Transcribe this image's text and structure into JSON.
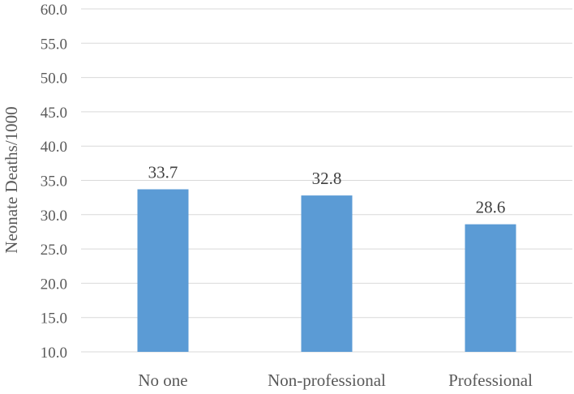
{
  "chart_data": {
    "type": "bar",
    "title": "",
    "xlabel": "",
    "ylabel": "Neonate Deaths/1000",
    "categories": [
      "No one",
      "Non-professional",
      "Professional"
    ],
    "values": [
      33.7,
      32.8,
      28.6
    ],
    "data_labels": [
      "33.7",
      "32.8",
      "28.6"
    ],
    "ylim": [
      10,
      60
    ],
    "yticks": [
      "10.0",
      "15.0",
      "20.0",
      "25.0",
      "30.0",
      "35.0",
      "40.0",
      "45.0",
      "50.0",
      "55.0",
      "60.0"
    ],
    "grid": true,
    "legend": "none",
    "bar_color": "#5b9bd5"
  }
}
